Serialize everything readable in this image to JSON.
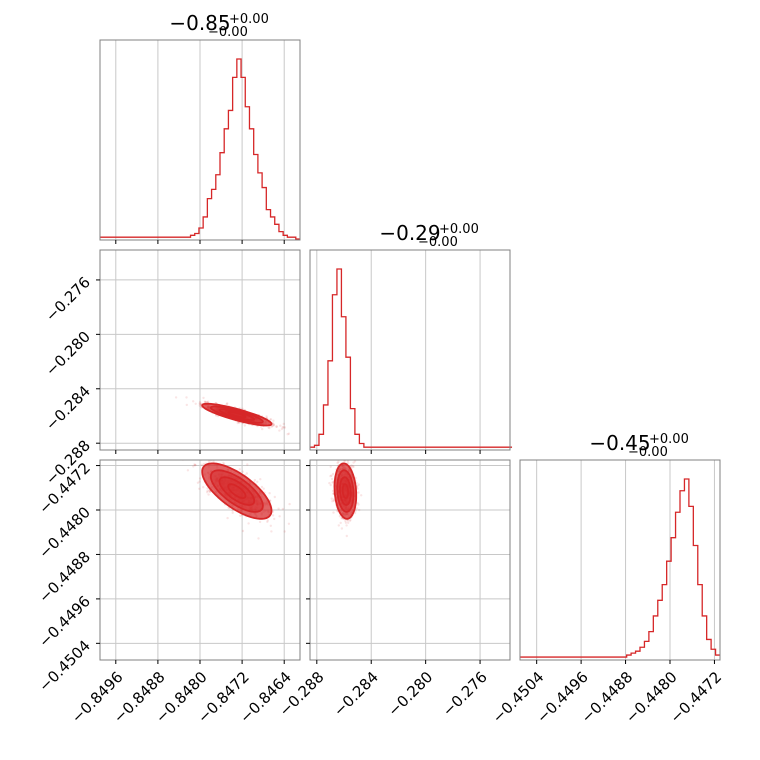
{
  "colors": {
    "series": "#d62728",
    "grid": "#c8c8c8",
    "frame": "#808080"
  },
  "chart_data": {
    "type": "corner",
    "parameters": [
      {
        "title": {
          "value": "−0.85",
          "plus": "+0.00",
          "minus": "−0.00"
        },
        "range": [
          -0.8499,
          -0.8461
        ],
        "ticks": [
          -0.8496,
          -0.8488,
          -0.848,
          -0.8472,
          -0.8464
        ],
        "tick_labels": [
          "−0.8496",
          "−0.8488",
          "−0.8480",
          "−0.8472",
          "−0.8464"
        ],
        "mode": -0.8473,
        "sigma": 0.00033
      },
      {
        "title": {
          "value": "−0.29",
          "plus": "+0.00",
          "minus": "−0.00"
        },
        "range": [
          -0.2885,
          -0.2738
        ],
        "ticks": [
          -0.288,
          -0.284,
          -0.28,
          -0.276
        ],
        "tick_labels": [
          "−0.288",
          "−0.284",
          "−0.280",
          "−0.276"
        ],
        "mode": -0.2859,
        "sigma": 0.0004
      },
      {
        "title": {
          "value": "−0.45",
          "plus": "+0.00",
          "minus": "−0.00"
        },
        "range": [
          -0.4507,
          -0.4471
        ],
        "ticks": [
          -0.4504,
          -0.4496,
          -0.4488,
          -0.448,
          -0.4472
        ],
        "tick_labels": [
          "−0.4504",
          "−0.4496",
          "−0.4488",
          "−0.4480",
          "−0.4472"
        ],
        "mode": -0.44766,
        "sigma": 0.00025
      }
    ],
    "histograms": [
      {
        "param": 0,
        "bins": [
          -0.84986,
          -0.84978,
          -0.8497,
          -0.84962,
          -0.84954,
          -0.84946,
          -0.84938,
          -0.8493,
          -0.84922,
          -0.84914,
          -0.84906,
          -0.84898,
          -0.8489,
          -0.84882,
          -0.84874,
          -0.84866,
          -0.84858,
          -0.8485,
          -0.84842,
          -0.84834,
          -0.84826,
          -0.84818,
          -0.8481,
          -0.84802,
          -0.84794,
          -0.84786,
          -0.84778,
          -0.8477,
          -0.84762,
          -0.84754,
          -0.84746,
          -0.84738,
          -0.8473,
          -0.84722,
          -0.84714,
          -0.84706,
          -0.84698,
          -0.8469,
          -0.84682,
          -0.84674,
          -0.84666,
          -0.84658,
          -0.8465,
          -0.84642,
          -0.84634,
          -0.84626,
          -0.84618,
          -0.8461
        ],
        "counts": [
          1,
          1,
          1,
          1,
          1,
          1,
          1,
          1,
          1,
          1,
          1,
          1,
          1,
          1,
          1,
          1,
          1,
          1,
          1,
          1,
          1,
          2,
          3,
          6,
          12,
          22,
          27,
          35,
          47,
          60,
          70,
          88,
          98,
          88,
          72,
          60,
          46,
          36,
          28,
          16,
          12,
          8,
          4,
          2,
          1,
          1,
          0
        ]
      },
      {
        "param": 1,
        "bins": [
          -0.2885,
          -0.28817,
          -0.28784,
          -0.28751,
          -0.28718,
          -0.28685,
          -0.28652,
          -0.28619,
          -0.28586,
          -0.28553,
          -0.2852,
          -0.28487,
          -0.28454,
          -0.28421,
          -0.28388,
          -0.28355,
          -0.28322,
          -0.28289,
          -0.28256,
          -0.28223,
          -0.2819,
          -0.28157,
          -0.28124,
          -0.28091,
          -0.28058,
          -0.28025,
          -0.27992,
          -0.27959,
          -0.27926,
          -0.27893,
          -0.2786,
          -0.27827,
          -0.27794,
          -0.27761,
          -0.27728,
          -0.27695,
          -0.27662,
          -0.27629,
          -0.27596,
          -0.27563,
          -0.2753,
          -0.27497,
          -0.27464,
          -0.27431,
          -0.27398,
          -0.27365
        ],
        "counts": [
          1,
          2,
          8,
          24,
          48,
          84,
          98,
          72,
          50,
          22,
          8,
          3,
          1,
          1,
          1,
          1,
          1,
          1,
          1,
          1,
          1,
          1,
          1,
          1,
          1,
          1,
          1,
          1,
          1,
          1,
          1,
          1,
          1,
          1,
          1,
          1,
          1,
          1,
          1,
          1,
          1,
          1,
          1,
          1,
          1
        ]
      },
      {
        "param": 2,
        "bins": [
          -0.4507,
          -0.45062,
          -0.45054,
          -0.45046,
          -0.45038,
          -0.4503,
          -0.45022,
          -0.45014,
          -0.45006,
          -0.44998,
          -0.4499,
          -0.44982,
          -0.44974,
          -0.44966,
          -0.44958,
          -0.4495,
          -0.44942,
          -0.44934,
          -0.44926,
          -0.44918,
          -0.4491,
          -0.44902,
          -0.44894,
          -0.44886,
          -0.44878,
          -0.4487,
          -0.44862,
          -0.44854,
          -0.44846,
          -0.44838,
          -0.4483,
          -0.44822,
          -0.44814,
          -0.44806,
          -0.44798,
          -0.4479,
          -0.44782,
          -0.44774,
          -0.44766,
          -0.44758,
          -0.4475,
          -0.44742,
          -0.44734,
          -0.44726,
          -0.44718,
          -0.4471
        ],
        "counts": [
          1,
          1,
          1,
          1,
          1,
          1,
          1,
          1,
          1,
          1,
          1,
          1,
          1,
          1,
          1,
          1,
          1,
          1,
          1,
          1,
          1,
          1,
          1,
          1,
          2,
          3,
          4,
          6,
          9,
          14,
          22,
          30,
          38,
          50,
          62,
          75,
          86,
          92,
          78,
          58,
          38,
          22,
          10,
          5,
          2
        ]
      }
    ],
    "pairs": [
      {
        "x_param": 0,
        "y_param": 1,
        "corr": -0.85
      },
      {
        "x_param": 0,
        "y_param": 2,
        "corr": -0.7
      },
      {
        "x_param": 1,
        "y_param": 2,
        "corr": -0.15
      }
    ],
    "contour_levels": [
      0.118,
      0.393,
      0.675,
      0.864
    ],
    "grid": true
  }
}
